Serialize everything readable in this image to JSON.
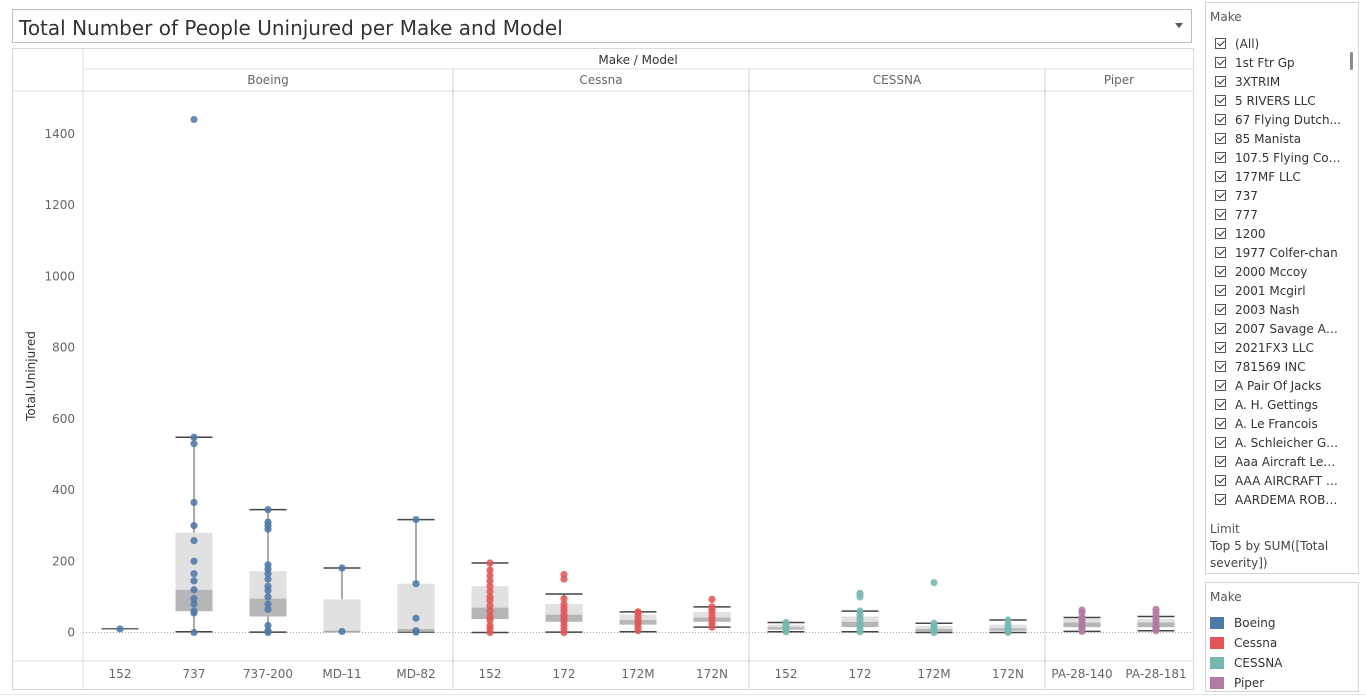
{
  "title": "Total Number of People Uninjured per Make and Model",
  "filter_panel": {
    "title": "Make",
    "items": [
      "(All)",
      "1st Ftr Gp",
      "3XTRIM",
      "5 RIVERS LLC",
      "67 Flying Dutch...",
      "85 Manista",
      "107.5 Flying Cor...",
      "177MF LLC",
      "737",
      "777",
      "1200",
      "1977 Colfer-chan",
      "2000 Mccoy",
      "2001 Mcgirl",
      "2003 Nash",
      "2007 Savage Air ...",
      "2021FX3 LLC",
      "781569 INC",
      "A Pair Of Jacks",
      "A. H. Gettings",
      "A. Le Francois",
      "A. Schleicher GM...",
      "Aaa Aircraft Lea...",
      "AAA AIRCRAFT LLC",
      "AARDEMA ROBE..."
    ],
    "limit_title": "Limit",
    "limit_text": "Top 5 by SUM([Total severity])"
  },
  "legend": {
    "title": "Make",
    "items": [
      {
        "label": "Boeing",
        "color": "#4e79a7"
      },
      {
        "label": "Cessna",
        "color": "#e15759"
      },
      {
        "label": "CESSNA",
        "color": "#76b7b2"
      },
      {
        "label": "Piper",
        "color": "#b07aa1"
      }
    ]
  },
  "chart_data": {
    "type": "box",
    "header_label": "Make / Model",
    "ylabel": "Total.Uninjured",
    "ylim": [
      -80,
      1520
    ],
    "yticks": [
      0,
      200,
      400,
      600,
      800,
      1000,
      1200,
      1400
    ],
    "groups": [
      {
        "make": "Boeing",
        "color": "#4e79a7",
        "models": [
          {
            "model": "152",
            "box": [
              10,
              10,
              10,
              10,
              10
            ],
            "points": [
              10
            ]
          },
          {
            "model": "737",
            "box": [
              2,
              60,
              120,
              280,
              548
            ],
            "points": [
              0,
              55,
              60,
              80,
              95,
              120,
              145,
              165,
              200,
              258,
              300,
              365,
              530,
              548,
              1440
            ]
          },
          {
            "model": "737-200",
            "box": [
              1,
              45,
              95,
              172,
              345
            ],
            "points": [
              0,
              5,
              20,
              65,
              80,
              100,
              118,
              130,
              150,
              165,
              178,
              190,
              290,
              300,
              310,
              345
            ]
          },
          {
            "model": "MD-11",
            "box": [
              3,
              3,
              3,
              93,
              181
            ],
            "points": [
              3,
              181
            ]
          },
          {
            "model": "MD-82",
            "box": [
              1,
              1,
              10,
              137,
              317
            ],
            "points": [
              1,
              5,
              40,
              137,
              317
            ]
          }
        ]
      },
      {
        "make": "Cessna",
        "color": "#e15759",
        "models": [
          {
            "model": "152",
            "box": [
              0,
              38,
              70,
              130,
              195
            ],
            "points": [
              0,
              10,
              20,
              35,
              45,
              60,
              75,
              90,
              100,
              115,
              130,
              145,
              160,
              175,
              195
            ]
          },
          {
            "model": "172",
            "box": [
              1,
              30,
              50,
              80,
              108
            ],
            "points": [
              0,
              10,
              20,
              30,
              40,
              50,
              60,
              70,
              80,
              95,
              150,
              163
            ]
          },
          {
            "model": "172M",
            "box": [
              2,
              22,
              35,
              50,
              58
            ],
            "points": [
              5,
              15,
              25,
              35,
              45,
              55,
              58
            ]
          },
          {
            "model": "172N",
            "box": [
              15,
              30,
              42,
              58,
              72
            ],
            "points": [
              15,
              25,
              35,
              45,
              55,
              65,
              72,
              93
            ]
          }
        ]
      },
      {
        "make": "CESSNA",
        "color": "#76b7b2",
        "models": [
          {
            "model": "152",
            "box": [
              2,
              8,
              15,
              22,
              28
            ],
            "points": [
              2,
              8,
              15,
              22,
              28
            ]
          },
          {
            "model": "172",
            "box": [
              2,
              15,
              30,
              45,
              60
            ],
            "points": [
              2,
              10,
              20,
              30,
              40,
              50,
              60,
              100,
              110
            ]
          },
          {
            "model": "172M",
            "box": [
              0,
              3,
              10,
              18,
              26
            ],
            "points": [
              0,
              5,
              10,
              18,
              26,
              140
            ]
          },
          {
            "model": "172N",
            "box": [
              0,
              5,
              12,
              22,
              35
            ],
            "points": [
              0,
              5,
              12,
              22,
              35
            ]
          }
        ]
      },
      {
        "make": "Piper",
        "color": "#b07aa1",
        "models": [
          {
            "model": "PA-28-140",
            "box": [
              3,
              15,
              28,
              38,
              42
            ],
            "points": [
              3,
              10,
              15,
              20,
              28,
              38,
              42,
              55,
              63
            ]
          },
          {
            "model": "PA-28-181",
            "box": [
              5,
              15,
              28,
              38,
              45
            ],
            "points": [
              5,
              10,
              15,
              20,
              28,
              38,
              45,
              55,
              65
            ]
          }
        ]
      }
    ]
  }
}
